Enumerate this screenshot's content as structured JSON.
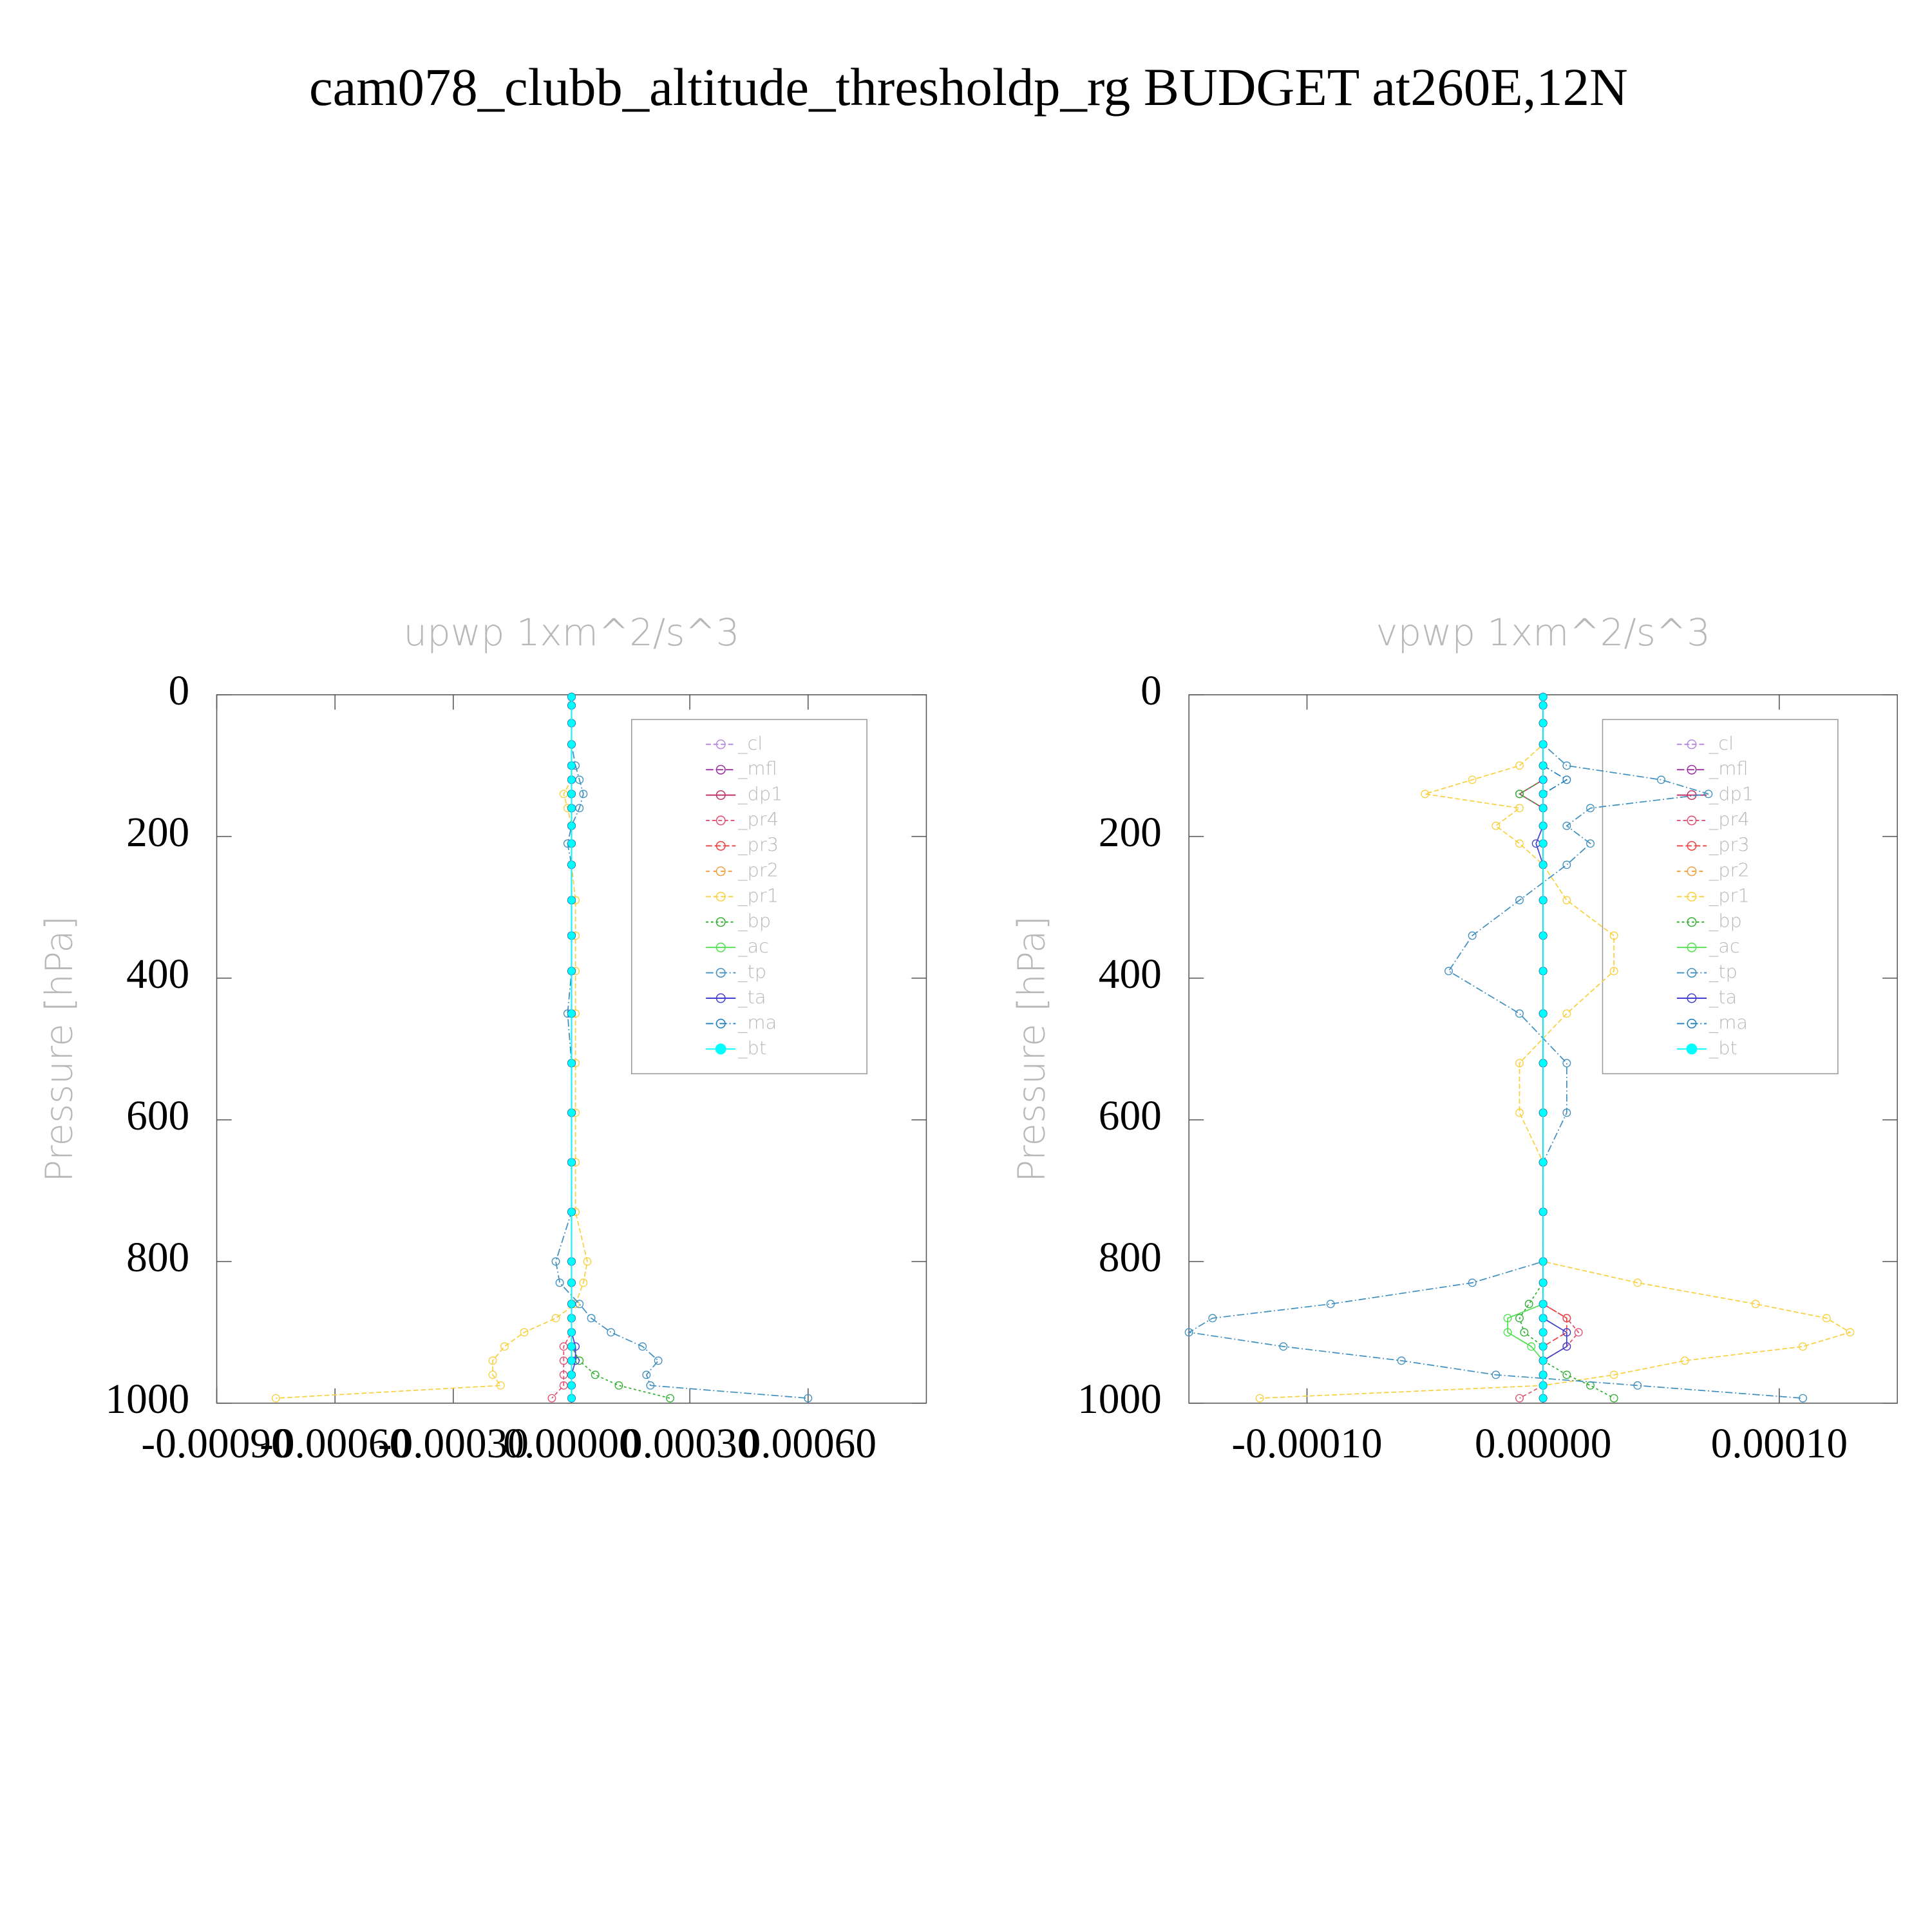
{
  "title": "cam078_clubb_altitude_thresholdp_rg  BUDGET at260E,12N",
  "chart_data": [
    {
      "type": "line",
      "title": "upwp   1xm^2/s^3",
      "y_label": "Pressure [hPa]",
      "y": [
        3,
        15,
        40,
        70,
        100,
        120,
        140,
        160,
        185,
        210,
        240,
        290,
        340,
        390,
        450,
        520,
        590,
        660,
        730,
        800,
        830,
        860,
        880,
        900,
        920,
        940,
        960,
        975,
        993
      ],
      "ylim": [
        1000,
        0
      ],
      "yticks": [
        0,
        200,
        400,
        600,
        800,
        1000
      ],
      "xlim": [
        -0.0009,
        0.0009
      ],
      "xticks": [
        {
          "value": -0.0009,
          "label": "-0.00090"
        },
        {
          "value": -0.0006,
          "label": "-0.00060"
        },
        {
          "value": -0.0003,
          "label": "-0.00030"
        },
        {
          "value": 0,
          "label": "0.00000"
        },
        {
          "value": 0.0003,
          "label": "0.00030"
        },
        {
          "value": 0.0006,
          "label": "0.00060"
        }
      ],
      "legend": "upper right",
      "series": [
        {
          "name": "_cl",
          "color": "#b48ce0",
          "values": [
            0,
            0,
            0,
            0,
            0,
            0,
            0,
            0,
            0,
            0,
            0,
            0,
            0,
            0,
            0,
            0,
            0,
            0,
            0,
            0,
            0,
            0,
            0,
            0,
            0,
            0,
            0,
            0,
            0
          ]
        },
        {
          "name": "_mfl",
          "color": "#9b30a0",
          "values": [
            0,
            0,
            0,
            0,
            0,
            0,
            0,
            0,
            0,
            0,
            0,
            0,
            0,
            0,
            0,
            0,
            0,
            0,
            0,
            0,
            0,
            0,
            0,
            0,
            0,
            0,
            0,
            0,
            0
          ]
        },
        {
          "name": "_dp1",
          "color": "#c0306a",
          "values": [
            0,
            0,
            0,
            0,
            0,
            0,
            0,
            0,
            0,
            0,
            0,
            0,
            0,
            0,
            0,
            0,
            0,
            0,
            0,
            0,
            0,
            0,
            0,
            0,
            0,
            0,
            0,
            0,
            0
          ]
        },
        {
          "name": "_pr4",
          "color": "#e05070",
          "values": [
            0,
            0,
            0,
            0,
            0,
            0,
            0,
            0,
            0,
            0,
            0,
            0,
            0,
            0,
            0,
            0,
            0,
            0,
            0,
            0,
            0,
            0,
            0,
            0,
            -2e-05,
            -2e-05,
            -2e-05,
            -2e-05,
            -5e-05
          ]
        },
        {
          "name": "_pr3",
          "color": "#f04040",
          "values": [
            0,
            0,
            0,
            0,
            0,
            0,
            0,
            0,
            0,
            0,
            0,
            0,
            0,
            0,
            0,
            0,
            0,
            0,
            0,
            0,
            0,
            0,
            0,
            0,
            0,
            0,
            0,
            0,
            0
          ]
        },
        {
          "name": "_pr2",
          "color": "#f0a040",
          "values": [
            0,
            0,
            0,
            0,
            0,
            0,
            0,
            0,
            0,
            0,
            0,
            0,
            0,
            0,
            0,
            0,
            0,
            0,
            0,
            0,
            0,
            0,
            0,
            0,
            0,
            0,
            0,
            0,
            0
          ]
        },
        {
          "name": "_pr1",
          "color": "#f8d040",
          "values": [
            0,
            0,
            0,
            0,
            0,
            0,
            -2e-05,
            -1e-05,
            0,
            0,
            0,
            1e-05,
            1e-05,
            1e-05,
            1e-05,
            1e-05,
            1e-05,
            1e-05,
            1e-05,
            4e-05,
            3e-05,
            1e-05,
            -4e-05,
            -0.00012,
            -0.00017,
            -0.0002,
            -0.0002,
            -0.00018,
            -0.00075
          ]
        },
        {
          "name": "_bp",
          "color": "#30b030",
          "values": [
            0,
            0,
            0,
            0,
            0,
            0,
            0,
            0,
            0,
            0,
            0,
            0,
            0,
            0,
            0,
            0,
            0,
            0,
            0,
            0,
            0,
            0,
            0,
            0,
            0,
            2e-05,
            6e-05,
            0.00012,
            0.00025
          ]
        },
        {
          "name": "_ac",
          "color": "#50e050",
          "values": [
            0,
            0,
            0,
            0,
            0,
            0,
            0,
            0,
            0,
            0,
            0,
            0,
            0,
            0,
            0,
            0,
            0,
            0,
            0,
            0,
            0,
            0,
            0,
            0,
            0,
            0,
            0,
            0,
            0
          ]
        },
        {
          "name": "_tp",
          "color": "#4090c0",
          "values": [
            0,
            0,
            0,
            0,
            1e-05,
            2e-05,
            3e-05,
            2e-05,
            0,
            -1e-05,
            0,
            0,
            0,
            0,
            -1e-05,
            0,
            0,
            0,
            0,
            -4e-05,
            -3e-05,
            2e-05,
            5e-05,
            0.0001,
            0.00018,
            0.00022,
            0.00019,
            0.0002,
            0.0006
          ]
        },
        {
          "name": "_ta",
          "color": "#4040d0",
          "values": [
            0,
            0,
            0,
            0,
            0,
            0,
            0,
            0,
            0,
            0,
            0,
            0,
            0,
            0,
            0,
            0,
            0,
            0,
            0,
            0,
            0,
            0,
            0,
            0,
            1e-05,
            1e-05,
            0,
            0,
            0
          ]
        },
        {
          "name": "_ma",
          "color": "#2080c0",
          "values": [
            0,
            0,
            0,
            0,
            0,
            0,
            0,
            0,
            0,
            0,
            0,
            0,
            0,
            0,
            0,
            0,
            0,
            0,
            0,
            0,
            0,
            0,
            0,
            0,
            0,
            0,
            0,
            0,
            0
          ]
        },
        {
          "name": "_bt",
          "color": "#00ffff",
          "values": [
            0,
            0,
            0,
            0,
            0,
            0,
            0,
            0,
            0,
            0,
            0,
            0,
            0,
            0,
            0,
            0,
            0,
            0,
            0,
            0,
            0,
            0,
            0,
            0,
            0,
            0,
            0,
            0,
            0
          ]
        }
      ]
    },
    {
      "type": "line",
      "title": "vpwp   1xm^2/s^3",
      "y_label": "Pressure [hPa]",
      "y": [
        3,
        15,
        40,
        70,
        100,
        120,
        140,
        160,
        185,
        210,
        240,
        290,
        340,
        390,
        450,
        520,
        590,
        660,
        730,
        800,
        830,
        860,
        880,
        900,
        920,
        940,
        960,
        975,
        993
      ],
      "ylim": [
        1000,
        0
      ],
      "yticks": [
        0,
        200,
        400,
        600,
        800,
        1000
      ],
      "xlim": [
        -0.00015,
        0.00015
      ],
      "xticks": [
        {
          "value": -0.0001,
          "label": "-0.00010"
        },
        {
          "value": 0,
          "label": "0.00000"
        },
        {
          "value": 0.0001,
          "label": "0.00010"
        }
      ],
      "legend": "upper right",
      "series": [
        {
          "name": "_cl",
          "color": "#b48ce0",
          "values": [
            0,
            0,
            0,
            0,
            0,
            0,
            0,
            0,
            0,
            0,
            0,
            0,
            0,
            0,
            0,
            0,
            0,
            0,
            0,
            0,
            0,
            0,
            0,
            0,
            0,
            0,
            0,
            0,
            0
          ]
        },
        {
          "name": "_mfl",
          "color": "#9b30a0",
          "values": [
            0,
            0,
            0,
            0,
            0,
            0,
            0,
            0,
            0,
            0,
            0,
            0,
            0,
            0,
            0,
            0,
            0,
            0,
            0,
            0,
            0,
            0,
            0,
            0,
            0,
            0,
            0,
            0,
            0
          ]
        },
        {
          "name": "_dp1",
          "color": "#c0306a",
          "values": [
            0,
            0,
            0,
            0,
            0,
            0,
            -1e-05,
            0,
            0,
            0,
            0,
            0,
            0,
            0,
            0,
            0,
            0,
            0,
            0,
            0,
            0,
            0,
            0,
            0,
            0,
            0,
            0,
            0,
            0
          ]
        },
        {
          "name": "_pr4",
          "color": "#e05070",
          "values": [
            0,
            0,
            0,
            0,
            0,
            0,
            0,
            0,
            0,
            0,
            0,
            0,
            0,
            0,
            0,
            0,
            0,
            0,
            0,
            0,
            0,
            0,
            1e-05,
            1.5e-05,
            1e-05,
            0,
            0,
            0,
            -1e-05
          ]
        },
        {
          "name": "_pr3",
          "color": "#f04040",
          "values": [
            0,
            0,
            0,
            0,
            0,
            0,
            0,
            0,
            0,
            0,
            0,
            0,
            0,
            0,
            0,
            0,
            0,
            0,
            0,
            0,
            0,
            0,
            1e-05,
            1e-05,
            0,
            0,
            0,
            0,
            0
          ]
        },
        {
          "name": "_pr2",
          "color": "#f0a040",
          "values": [
            0,
            0,
            0,
            0,
            0,
            0,
            0,
            0,
            0,
            0,
            0,
            0,
            0,
            0,
            0,
            0,
            0,
            0,
            0,
            0,
            0,
            0,
            0,
            0,
            0,
            0,
            0,
            0,
            0
          ]
        },
        {
          "name": "_pr1",
          "color": "#f8d040",
          "values": [
            0,
            0,
            0,
            0,
            -1e-05,
            -3e-05,
            -5e-05,
            -1e-05,
            -2e-05,
            -1e-05,
            0,
            1e-05,
            3e-05,
            3e-05,
            1e-05,
            -1e-05,
            -1e-05,
            0,
            0,
            0,
            4e-05,
            9e-05,
            0.00012,
            0.00013,
            0.00011,
            6e-05,
            3e-05,
            0,
            -0.00012
          ]
        },
        {
          "name": "_bp",
          "color": "#30b030",
          "values": [
            0,
            0,
            0,
            0,
            0,
            0,
            -1e-05,
            0,
            0,
            0,
            0,
            0,
            0,
            0,
            0,
            0,
            0,
            0,
            0,
            0,
            0,
            -6e-06,
            -1e-05,
            -8e-06,
            0,
            0,
            1e-05,
            2e-05,
            3e-05
          ]
        },
        {
          "name": "_ac",
          "color": "#50e050",
          "values": [
            0,
            0,
            0,
            0,
            0,
            0,
            0,
            0,
            0,
            0,
            0,
            0,
            0,
            0,
            0,
            0,
            0,
            0,
            0,
            0,
            0,
            0,
            -1.5e-05,
            -1.5e-05,
            -5e-06,
            0,
            0,
            0,
            0
          ]
        },
        {
          "name": "_tp",
          "color": "#4090c0",
          "values": [
            0,
            0,
            0,
            0,
            1e-05,
            5e-05,
            7e-05,
            2e-05,
            1e-05,
            2e-05,
            1e-05,
            -1e-05,
            -3e-05,
            -4e-05,
            -1e-05,
            1e-05,
            1e-05,
            0,
            0,
            0,
            -3e-05,
            -9e-05,
            -0.00014,
            -0.00015,
            -0.00011,
            -6e-05,
            -2e-05,
            4e-05,
            0.00011
          ]
        },
        {
          "name": "_ta",
          "color": "#4040d0",
          "values": [
            0,
            0,
            0,
            0,
            0,
            0,
            0,
            0,
            0,
            -3e-06,
            0,
            0,
            0,
            0,
            0,
            0,
            0,
            0,
            0,
            0,
            0,
            0,
            0,
            1e-05,
            1e-05,
            0,
            0,
            0,
            0
          ]
        },
        {
          "name": "_ma",
          "color": "#2080c0",
          "values": [
            0,
            0,
            0,
            0,
            0,
            1e-05,
            0,
            0,
            0,
            0,
            0,
            0,
            0,
            0,
            0,
            0,
            0,
            0,
            0,
            0,
            0,
            0,
            0,
            0,
            0,
            0,
            0,
            0,
            0
          ]
        },
        {
          "name": "_bt",
          "color": "#00ffff",
          "values": [
            0,
            0,
            0,
            0,
            0,
            0,
            0,
            0,
            0,
            0,
            0,
            0,
            0,
            0,
            0,
            0,
            0,
            0,
            0,
            0,
            0,
            0,
            0,
            0,
            0,
            0,
            0,
            0,
            0
          ]
        }
      ]
    }
  ]
}
